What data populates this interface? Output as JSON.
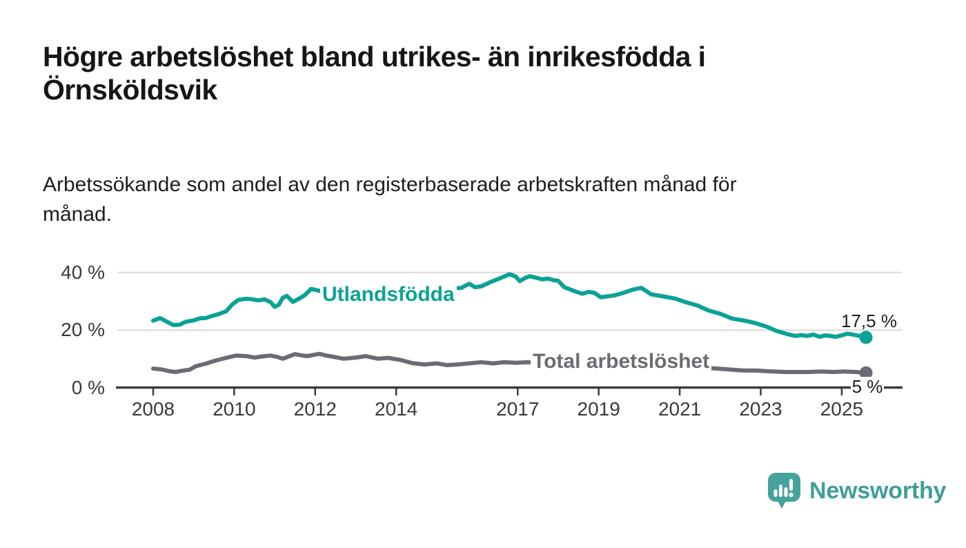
{
  "header": {
    "title": "Högre arbetslöshet bland utrikes- än inrikesfödda i Örnsköldsvik",
    "title_lines": [
      "Högre arbetslöshet bland utrikes- än inrikesfödda i",
      "Örnsköldsvik"
    ],
    "subtitle": "Arbetssökande som andel av den registerbaserade arbetskraften månad för månad.",
    "subtitle_lines": [
      "Arbetssökande som andel av den registerbaserade arbetskraften månad för",
      "månad."
    ]
  },
  "footer": {
    "brand": "Newsworthy",
    "brand_color": "#3f9e99",
    "logo_icon": "bar-chart-speech-bubble"
  },
  "colors": {
    "series_foreign_born": "#0ba296",
    "series_total": "#6e6a73",
    "gridline": "#dadada",
    "axis": "#3c3c3c",
    "text_dark": "#161613",
    "end_label_text": "#1f1f1f"
  },
  "chart_data": {
    "type": "line",
    "title": "Högre arbetslöshet bland utrikes- än inrikesfödda i Örnsköldsvik",
    "subtitle": "Arbetssökande som andel av den registerbaserade arbetskraften månad för månad.",
    "legend_position": "inline-labels",
    "grid": "horizontal",
    "x_axis": {
      "range_years": [
        2007.1,
        2026.5
      ],
      "ticks": [
        {
          "label": "2008",
          "year": 2008
        },
        {
          "label": "2010",
          "year": 2010
        },
        {
          "label": "2012",
          "year": 2012
        },
        {
          "label": "2014",
          "year": 2014
        },
        {
          "label": "2017",
          "year": 2017
        },
        {
          "label": "2019",
          "year": 2019
        },
        {
          "label": "2021",
          "year": 2021
        },
        {
          "label": "2023",
          "year": 2023
        },
        {
          "label": "2025",
          "year": 2025
        }
      ]
    },
    "y_axis": {
      "unit": "%",
      "range": [
        0,
        43
      ],
      "ticks": [
        {
          "label": "40 %",
          "value": 40
        },
        {
          "label": "20 %",
          "value": 20
        },
        {
          "label": "0 %",
          "value": 0
        }
      ]
    },
    "series": [
      {
        "name": "Utlandsfödda",
        "color": "#0ba296",
        "end_label": "17,5 %",
        "end_value": 17.5,
        "points": [
          [
            2008.0,
            23.3
          ],
          [
            2008.17,
            24.2
          ],
          [
            2008.33,
            23.0
          ],
          [
            2008.5,
            21.8
          ],
          [
            2008.65,
            21.9
          ],
          [
            2008.8,
            22.9
          ],
          [
            2009.0,
            23.4
          ],
          [
            2009.15,
            24.1
          ],
          [
            2009.3,
            24.2
          ],
          [
            2009.45,
            24.9
          ],
          [
            2009.6,
            25.5
          ],
          [
            2009.8,
            26.5
          ],
          [
            2009.95,
            28.9
          ],
          [
            2010.1,
            30.5
          ],
          [
            2010.3,
            30.9
          ],
          [
            2010.45,
            30.7
          ],
          [
            2010.6,
            30.3
          ],
          [
            2010.75,
            30.7
          ],
          [
            2010.9,
            29.7
          ],
          [
            2011.0,
            28.1
          ],
          [
            2011.1,
            28.8
          ],
          [
            2011.2,
            31.2
          ],
          [
            2011.3,
            31.9
          ],
          [
            2011.45,
            29.8
          ],
          [
            2011.6,
            30.9
          ],
          [
            2011.75,
            32.2
          ],
          [
            2011.9,
            34.3
          ],
          [
            2012.05,
            33.8
          ],
          [
            2012.2,
            33.4
          ],
          [
            2012.4,
            33.9
          ],
          [
            2012.7,
            33.4
          ],
          [
            2013.0,
            34.1
          ],
          [
            2013.3,
            34.4
          ],
          [
            2013.6,
            33.8
          ],
          [
            2013.9,
            34.3
          ],
          [
            2014.2,
            34.6
          ],
          [
            2014.5,
            34.2
          ],
          [
            2014.8,
            34.7
          ],
          [
            2015.1,
            34.4
          ],
          [
            2015.4,
            34.6
          ],
          [
            2015.6,
            34.6
          ],
          [
            2015.8,
            36.1
          ],
          [
            2015.95,
            34.9
          ],
          [
            2016.1,
            35.2
          ],
          [
            2016.3,
            36.5
          ],
          [
            2016.6,
            38.2
          ],
          [
            2016.8,
            39.4
          ],
          [
            2016.95,
            38.6
          ],
          [
            2017.05,
            37.0
          ],
          [
            2017.2,
            38.2
          ],
          [
            2017.3,
            38.7
          ],
          [
            2017.45,
            38.2
          ],
          [
            2017.6,
            37.6
          ],
          [
            2017.75,
            37.9
          ],
          [
            2017.9,
            37.3
          ],
          [
            2018.0,
            37.1
          ],
          [
            2018.15,
            34.9
          ],
          [
            2018.3,
            34.1
          ],
          [
            2018.45,
            33.3
          ],
          [
            2018.6,
            32.6
          ],
          [
            2018.75,
            33.3
          ],
          [
            2018.9,
            32.9
          ],
          [
            2019.05,
            31.4
          ],
          [
            2019.2,
            31.7
          ],
          [
            2019.4,
            32.1
          ],
          [
            2019.6,
            32.9
          ],
          [
            2019.85,
            34.1
          ],
          [
            2020.05,
            34.7
          ],
          [
            2020.3,
            32.4
          ],
          [
            2020.6,
            31.7
          ],
          [
            2020.9,
            30.9
          ],
          [
            2021.15,
            29.7
          ],
          [
            2021.45,
            28.5
          ],
          [
            2021.7,
            26.9
          ],
          [
            2022.0,
            25.7
          ],
          [
            2022.3,
            24.0
          ],
          [
            2022.6,
            23.3
          ],
          [
            2022.85,
            22.5
          ],
          [
            2023.15,
            21.2
          ],
          [
            2023.4,
            19.7
          ],
          [
            2023.7,
            18.5
          ],
          [
            2023.85,
            18.0
          ],
          [
            2024.0,
            18.3
          ],
          [
            2024.15,
            18.0
          ],
          [
            2024.3,
            18.5
          ],
          [
            2024.45,
            17.7
          ],
          [
            2024.6,
            18.2
          ],
          [
            2024.85,
            17.7
          ],
          [
            2025.0,
            18.2
          ],
          [
            2025.15,
            18.8
          ],
          [
            2025.3,
            18.4
          ],
          [
            2025.45,
            18.0
          ],
          [
            2025.6,
            17.5
          ]
        ]
      },
      {
        "name": "Total arbetslöshet",
        "color": "#6e6a73",
        "end_label": "5 %",
        "end_value": 5.2,
        "points": [
          [
            2008.0,
            6.7
          ],
          [
            2008.2,
            6.4
          ],
          [
            2008.4,
            5.8
          ],
          [
            2008.55,
            5.5
          ],
          [
            2008.7,
            5.9
          ],
          [
            2008.9,
            6.3
          ],
          [
            2009.05,
            7.5
          ],
          [
            2009.3,
            8.4
          ],
          [
            2009.5,
            9.3
          ],
          [
            2009.8,
            10.4
          ],
          [
            2010.05,
            11.2
          ],
          [
            2010.3,
            11.0
          ],
          [
            2010.5,
            10.5
          ],
          [
            2010.7,
            10.9
          ],
          [
            2010.9,
            11.2
          ],
          [
            2011.05,
            10.8
          ],
          [
            2011.2,
            10.1
          ],
          [
            2011.35,
            10.9
          ],
          [
            2011.5,
            11.7
          ],
          [
            2011.65,
            11.3
          ],
          [
            2011.8,
            11.0
          ],
          [
            2011.95,
            11.4
          ],
          [
            2012.1,
            11.8
          ],
          [
            2012.25,
            11.3
          ],
          [
            2012.4,
            10.9
          ],
          [
            2012.7,
            10.1
          ],
          [
            2013.0,
            10.5
          ],
          [
            2013.25,
            11.0
          ],
          [
            2013.55,
            10.1
          ],
          [
            2013.8,
            10.4
          ],
          [
            2014.1,
            9.7
          ],
          [
            2014.4,
            8.6
          ],
          [
            2014.7,
            8.1
          ],
          [
            2015.0,
            8.5
          ],
          [
            2015.25,
            7.9
          ],
          [
            2015.5,
            8.1
          ],
          [
            2015.8,
            8.5
          ],
          [
            2016.1,
            8.9
          ],
          [
            2016.4,
            8.5
          ],
          [
            2016.65,
            8.9
          ],
          [
            2016.95,
            8.7
          ],
          [
            2017.25,
            8.9
          ],
          [
            2017.45,
            8.7
          ],
          [
            2017.8,
            8.4
          ],
          [
            2018.2,
            7.8
          ],
          [
            2018.6,
            7.3
          ],
          [
            2019.0,
            7.0
          ],
          [
            2019.4,
            7.1
          ],
          [
            2019.8,
            7.4
          ],
          [
            2020.3,
            8.8
          ],
          [
            2020.8,
            8.2
          ],
          [
            2021.3,
            7.4
          ],
          [
            2021.7,
            6.9
          ],
          [
            2022.1,
            6.5
          ],
          [
            2022.4,
            6.2
          ],
          [
            2022.6,
            6.0
          ],
          [
            2022.9,
            6.0
          ],
          [
            2023.3,
            5.7
          ],
          [
            2023.6,
            5.5
          ],
          [
            2023.9,
            5.5
          ],
          [
            2024.2,
            5.5
          ],
          [
            2024.5,
            5.7
          ],
          [
            2024.8,
            5.5
          ],
          [
            2025.05,
            5.7
          ],
          [
            2025.35,
            5.5
          ],
          [
            2025.6,
            5.2
          ]
        ]
      }
    ]
  }
}
